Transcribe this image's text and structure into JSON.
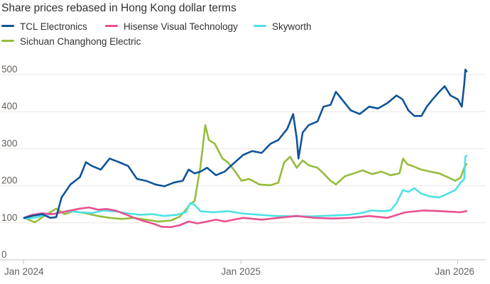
{
  "chart_data": {
    "type": "line",
    "title": "Share prices rebased in Hong Kong dollar terms",
    "xlabel": "",
    "ylabel": "",
    "x_range": [
      "2024-01-02",
      "2026-01-16"
    ],
    "ylim": [
      0,
      500
    ],
    "yticks": [
      0,
      100,
      200,
      300,
      400,
      500
    ],
    "xticks": [
      {
        "date": "2024-01-01",
        "label": "Jan 2024"
      },
      {
        "date": "2025-01-01",
        "label": "Jan 2025"
      },
      {
        "date": "2026-01-01",
        "label": "Jan 2026"
      }
    ],
    "grid": "horizontal",
    "legend_position": "top",
    "series": [
      {
        "name": "Sichuan Changhong Electric",
        "color": "#96bc3c",
        "points": [
          [
            "2024-01-02",
            100
          ],
          [
            "2024-01-20",
            88
          ],
          [
            "2024-02-08",
            108
          ],
          [
            "2024-02-25",
            125
          ],
          [
            "2024-03-10",
            110
          ],
          [
            "2024-03-25",
            118
          ],
          [
            "2024-04-15",
            112
          ],
          [
            "2024-05-05",
            105
          ],
          [
            "2024-05-25",
            100
          ],
          [
            "2024-06-15",
            97
          ],
          [
            "2024-07-05",
            100
          ],
          [
            "2024-07-25",
            95
          ],
          [
            "2024-08-15",
            90
          ],
          [
            "2024-09-05",
            93
          ],
          [
            "2024-09-20",
            103
          ],
          [
            "2024-10-02",
            125
          ],
          [
            "2024-10-08",
            138
          ],
          [
            "2024-10-15",
            145
          ],
          [
            "2024-10-25",
            240
          ],
          [
            "2024-11-02",
            350
          ],
          [
            "2024-11-08",
            310
          ],
          [
            "2024-11-18",
            300
          ],
          [
            "2024-12-01",
            260
          ],
          [
            "2024-12-10",
            250
          ],
          [
            "2024-12-20",
            230
          ],
          [
            "2025-01-02",
            200
          ],
          [
            "2025-01-15",
            205
          ],
          [
            "2025-02-01",
            190
          ],
          [
            "2025-02-20",
            188
          ],
          [
            "2025-03-05",
            195
          ],
          [
            "2025-03-15",
            250
          ],
          [
            "2025-03-25",
            265
          ],
          [
            "2025-04-05",
            235
          ],
          [
            "2025-04-15",
            255
          ],
          [
            "2025-04-25",
            242
          ],
          [
            "2025-05-10",
            235
          ],
          [
            "2025-05-20",
            220
          ],
          [
            "2025-06-01",
            200
          ],
          [
            "2025-06-10",
            190
          ],
          [
            "2025-06-25",
            212
          ],
          [
            "2025-07-10",
            220
          ],
          [
            "2025-07-25",
            228
          ],
          [
            "2025-08-10",
            218
          ],
          [
            "2025-08-25",
            225
          ],
          [
            "2025-09-10",
            215
          ],
          [
            "2025-09-25",
            220
          ],
          [
            "2025-10-01",
            260
          ],
          [
            "2025-10-08",
            245
          ],
          [
            "2025-10-20",
            238
          ],
          [
            "2025-11-01",
            230
          ],
          [
            "2025-11-15",
            225
          ],
          [
            "2025-12-01",
            220
          ],
          [
            "2025-12-15",
            210
          ],
          [
            "2025-12-28",
            200
          ],
          [
            "2026-01-06",
            208
          ],
          [
            "2026-01-12",
            235
          ],
          [
            "2026-01-16",
            245
          ]
        ]
      },
      {
        "name": "Skyworth",
        "color": "#4fe1e5",
        "points": [
          [
            "2024-01-02",
            98
          ],
          [
            "2024-01-20",
            100
          ],
          [
            "2024-02-08",
            108
          ],
          [
            "2024-02-25",
            112
          ],
          [
            "2024-03-15",
            118
          ],
          [
            "2024-04-05",
            115
          ],
          [
            "2024-04-25",
            113
          ],
          [
            "2024-05-15",
            120
          ],
          [
            "2024-06-05",
            117
          ],
          [
            "2024-06-25",
            112
          ],
          [
            "2024-07-15",
            108
          ],
          [
            "2024-08-05",
            110
          ],
          [
            "2024-08-25",
            105
          ],
          [
            "2024-09-15",
            108
          ],
          [
            "2024-09-30",
            115
          ],
          [
            "2024-10-08",
            140
          ],
          [
            "2024-10-15",
            135
          ],
          [
            "2024-10-25",
            118
          ],
          [
            "2024-11-15",
            115
          ],
          [
            "2024-12-10",
            118
          ],
          [
            "2025-01-02",
            112
          ],
          [
            "2025-02-01",
            108
          ],
          [
            "2025-03-01",
            105
          ],
          [
            "2025-04-01",
            104
          ],
          [
            "2025-05-01",
            104
          ],
          [
            "2025-06-01",
            106
          ],
          [
            "2025-07-01",
            108
          ],
          [
            "2025-07-20",
            112
          ],
          [
            "2025-08-10",
            120
          ],
          [
            "2025-08-25",
            118
          ],
          [
            "2025-09-10",
            120
          ],
          [
            "2025-09-20",
            140
          ],
          [
            "2025-10-01",
            175
          ],
          [
            "2025-10-10",
            170
          ],
          [
            "2025-10-20",
            180
          ],
          [
            "2025-11-01",
            165
          ],
          [
            "2025-11-15",
            158
          ],
          [
            "2025-12-01",
            155
          ],
          [
            "2025-12-15",
            165
          ],
          [
            "2025-12-28",
            175
          ],
          [
            "2026-01-06",
            195
          ],
          [
            "2026-01-12",
            205
          ],
          [
            "2026-01-14",
            265
          ],
          [
            "2026-01-16",
            268
          ]
        ]
      },
      {
        "name": "Hisense Visual Technology",
        "color": "#e9508f",
        "points": [
          [
            "2024-01-02",
            100
          ],
          [
            "2024-01-15",
            108
          ],
          [
            "2024-02-01",
            112
          ],
          [
            "2024-02-20",
            110
          ],
          [
            "2024-03-05",
            115
          ],
          [
            "2024-03-20",
            120
          ],
          [
            "2024-04-05",
            125
          ],
          [
            "2024-04-20",
            128
          ],
          [
            "2024-05-05",
            122
          ],
          [
            "2024-05-20",
            124
          ],
          [
            "2024-06-05",
            119
          ],
          [
            "2024-06-20",
            110
          ],
          [
            "2024-07-05",
            100
          ],
          [
            "2024-07-20",
            92
          ],
          [
            "2024-08-05",
            85
          ],
          [
            "2024-08-20",
            76
          ],
          [
            "2024-09-05",
            75
          ],
          [
            "2024-09-20",
            80
          ],
          [
            "2024-10-05",
            90
          ],
          [
            "2024-10-20",
            85
          ],
          [
            "2024-11-05",
            90
          ],
          [
            "2024-11-20",
            95
          ],
          [
            "2024-12-05",
            90
          ],
          [
            "2024-12-20",
            95
          ],
          [
            "2025-01-05",
            100
          ],
          [
            "2025-02-05",
            95
          ],
          [
            "2025-03-05",
            100
          ],
          [
            "2025-04-05",
            105
          ],
          [
            "2025-05-05",
            100
          ],
          [
            "2025-06-05",
            98
          ],
          [
            "2025-07-05",
            100
          ],
          [
            "2025-08-05",
            105
          ],
          [
            "2025-09-05",
            100
          ],
          [
            "2025-10-05",
            115
          ],
          [
            "2025-11-05",
            120
          ],
          [
            "2025-12-05",
            118
          ],
          [
            "2026-01-05",
            115
          ],
          [
            "2026-01-16",
            118
          ]
        ]
      },
      {
        "name": "TCL Electronics",
        "color": "#0f5499",
        "points": [
          [
            "2024-01-02",
            100
          ],
          [
            "2024-01-15",
            105
          ],
          [
            "2024-02-01",
            110
          ],
          [
            "2024-02-15",
            100
          ],
          [
            "2024-02-25",
            102
          ],
          [
            "2024-03-05",
            155
          ],
          [
            "2024-03-20",
            190
          ],
          [
            "2024-04-05",
            210
          ],
          [
            "2024-04-15",
            250
          ],
          [
            "2024-04-25",
            240
          ],
          [
            "2024-05-10",
            230
          ],
          [
            "2024-05-25",
            260
          ],
          [
            "2024-06-10",
            250
          ],
          [
            "2024-06-25",
            240
          ],
          [
            "2024-07-10",
            205
          ],
          [
            "2024-07-25",
            200
          ],
          [
            "2024-08-10",
            190
          ],
          [
            "2024-08-25",
            185
          ],
          [
            "2024-09-10",
            195
          ],
          [
            "2024-09-25",
            200
          ],
          [
            "2024-10-05",
            230
          ],
          [
            "2024-10-15",
            220
          ],
          [
            "2024-10-25",
            225
          ],
          [
            "2024-11-05",
            235
          ],
          [
            "2024-11-20",
            215
          ],
          [
            "2024-12-05",
            225
          ],
          [
            "2024-12-15",
            240
          ],
          [
            "2025-01-05",
            270
          ],
          [
            "2025-01-20",
            280
          ],
          [
            "2025-02-05",
            275
          ],
          [
            "2025-02-20",
            300
          ],
          [
            "2025-03-05",
            310
          ],
          [
            "2025-03-20",
            340
          ],
          [
            "2025-03-30",
            380
          ],
          [
            "2025-04-05",
            315
          ],
          [
            "2025-04-08",
            260
          ],
          [
            "2025-04-15",
            330
          ],
          [
            "2025-04-25",
            350
          ],
          [
            "2025-05-10",
            360
          ],
          [
            "2025-05-20",
            400
          ],
          [
            "2025-06-01",
            405
          ],
          [
            "2025-06-10",
            440
          ],
          [
            "2025-06-20",
            420
          ],
          [
            "2025-07-05",
            390
          ],
          [
            "2025-07-20",
            380
          ],
          [
            "2025-08-05",
            400
          ],
          [
            "2025-08-20",
            395
          ],
          [
            "2025-09-05",
            410
          ],
          [
            "2025-09-20",
            430
          ],
          [
            "2025-09-30",
            420
          ],
          [
            "2025-10-10",
            390
          ],
          [
            "2025-10-20",
            375
          ],
          [
            "2025-11-01",
            375
          ],
          [
            "2025-11-10",
            400
          ],
          [
            "2025-11-20",
            420
          ],
          [
            "2025-12-01",
            440
          ],
          [
            "2025-12-10",
            455
          ],
          [
            "2025-12-20",
            430
          ],
          [
            "2026-01-01",
            420
          ],
          [
            "2026-01-08",
            400
          ],
          [
            "2026-01-12",
            460
          ],
          [
            "2026-01-14",
            500
          ],
          [
            "2026-01-16",
            495
          ]
        ]
      }
    ]
  },
  "legend": [
    {
      "label": "TCL Electronics",
      "color": "#0f5499"
    },
    {
      "label": "Hisense Visual Technology",
      "color": "#e9508f"
    },
    {
      "label": "Skyworth",
      "color": "#4fe1e5"
    },
    {
      "label": "Sichuan Changhong Electric",
      "color": "#96bc3c"
    }
  ]
}
